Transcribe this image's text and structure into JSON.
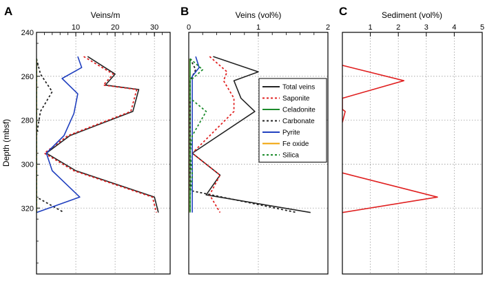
{
  "chart_data": [
    {
      "type": "line",
      "panel": "A",
      "title": "Veins/m",
      "xlabel": "Veins/m",
      "ylabel": "Depth (mbsf)",
      "xlim": [
        0,
        34
      ],
      "ylim": [
        240,
        350
      ],
      "y_inverted": true,
      "x_ticks": [
        10,
        20,
        30
      ],
      "y_ticks": [
        240,
        260,
        280,
        300,
        320
      ],
      "grid": true,
      "series": [
        {
          "name": "Total veins",
          "color": "#222222",
          "dash": "solid",
          "points": [
            [
              13,
              251
            ],
            [
              20,
              259
            ],
            [
              17.5,
              264
            ],
            [
              26,
              266
            ],
            [
              24.5,
              276
            ],
            [
              8.5,
              287
            ],
            [
              2.5,
              295
            ],
            [
              10,
              303
            ],
            [
              30,
              315
            ],
            [
              31,
              322
            ]
          ]
        },
        {
          "name": "Saponite",
          "color": "#e02020",
          "dash": "dotted",
          "points": [
            [
              12,
              251
            ],
            [
              19.5,
              259
            ],
            [
              17,
              264
            ],
            [
              25.5,
              266
            ],
            [
              24,
              276
            ],
            [
              8,
              287
            ],
            [
              2,
              295
            ],
            [
              9.5,
              303
            ],
            [
              29.5,
              315
            ],
            [
              30.5,
              322
            ]
          ]
        },
        {
          "name": "Celadonite",
          "color": "#1a8a2a",
          "dash": "solid",
          "points": [
            [
              0,
              252
            ],
            [
              0,
              322
            ]
          ]
        },
        {
          "name": "Carbonate",
          "color": "#222222",
          "dash": "dotted",
          "points": [
            [
              0,
              252
            ],
            [
              1,
              259
            ],
            [
              4,
              267
            ],
            [
              1,
              276
            ],
            [
              0,
              287
            ],
            [
              0,
              303
            ],
            [
              0,
              315
            ],
            [
              7,
              322
            ]
          ]
        },
        {
          "name": "Pyrite",
          "color": "#1f3fbf",
          "dash": "solid",
          "points": [
            [
              10.5,
              251
            ],
            [
              11.5,
              256
            ],
            [
              6.5,
              261
            ],
            [
              10.5,
              268
            ],
            [
              9.5,
              277
            ],
            [
              7,
              287
            ],
            [
              2.5,
              295
            ],
            [
              4,
              303
            ],
            [
              11,
              315
            ],
            [
              0,
              322
            ]
          ]
        },
        {
          "name": "Fe oxide",
          "color": "#f0a000",
          "dash": "solid",
          "points": [
            [
              0,
              252
            ],
            [
              0,
              322
            ]
          ]
        },
        {
          "name": "Silica",
          "color": "#1a8a2a",
          "dash": "dotted",
          "points": [
            [
              0,
              252
            ],
            [
              0,
              322
            ]
          ]
        }
      ]
    },
    {
      "type": "line",
      "panel": "B",
      "title": "Veins (vol%)",
      "xlabel": "Veins (vol%)",
      "ylabel": "",
      "xlim": [
        0,
        2
      ],
      "ylim": [
        240,
        350
      ],
      "y_inverted": true,
      "x_ticks": [
        0,
        1,
        2
      ],
      "grid": true,
      "legend": {
        "position": "right",
        "entries": [
          {
            "name": "Total veins",
            "color": "#222222",
            "dash": "solid"
          },
          {
            "name": "Saponite",
            "color": "#e02020",
            "dash": "dotted"
          },
          {
            "name": "Celadonite",
            "color": "#1a8a2a",
            "dash": "solid"
          },
          {
            "name": "Carbonate",
            "color": "#222222",
            "dash": "dotted"
          },
          {
            "name": "Pyrite",
            "color": "#1f3fbf",
            "dash": "solid"
          },
          {
            "name": "Fe oxide",
            "color": "#f0a000",
            "dash": "solid"
          },
          {
            "name": "Silica",
            "color": "#1a8a2a",
            "dash": "dotted"
          }
        ]
      },
      "series": [
        {
          "name": "Total veins",
          "color": "#222222",
          "dash": "solid",
          "points": [
            [
              0.35,
              251
            ],
            [
              1.0,
              258
            ],
            [
              0.65,
              262
            ],
            [
              0.75,
              270
            ],
            [
              0.95,
              276
            ],
            [
              0.05,
              295
            ],
            [
              0.45,
              305
            ],
            [
              0.25,
              314
            ],
            [
              1.75,
              322
            ]
          ]
        },
        {
          "name": "Saponite",
          "color": "#e02020",
          "dash": "dotted",
          "points": [
            [
              0.3,
              251
            ],
            [
              0.55,
              258
            ],
            [
              0.5,
              262
            ],
            [
              0.65,
              270
            ],
            [
              0.65,
              276
            ],
            [
              0.05,
              295
            ],
            [
              0.45,
              305
            ],
            [
              0.3,
              314
            ],
            [
              0.45,
              322
            ]
          ]
        },
        {
          "name": "Celadonite",
          "color": "#1a8a2a",
          "dash": "solid",
          "points": [
            [
              0.02,
              252
            ],
            [
              0.02,
              322
            ]
          ]
        },
        {
          "name": "Carbonate",
          "color": "#222222",
          "dash": "dotted",
          "points": [
            [
              0.02,
              252
            ],
            [
              0.1,
              257
            ],
            [
              0.02,
              262
            ],
            [
              0.02,
              312
            ],
            [
              1.55,
              322
            ]
          ]
        },
        {
          "name": "Pyrite",
          "color": "#1f3fbf",
          "dash": "solid",
          "points": [
            [
              0.1,
              251
            ],
            [
              0.15,
              256
            ],
            [
              0.05,
              260
            ],
            [
              0.05,
              322
            ]
          ]
        },
        {
          "name": "Fe oxide",
          "color": "#f0a000",
          "dash": "solid",
          "points": [
            [
              0,
              252
            ],
            [
              0,
              322
            ]
          ]
        },
        {
          "name": "Silica",
          "color": "#1a8a2a",
          "dash": "dotted",
          "points": [
            [
              0.02,
              252
            ],
            [
              0.2,
              257
            ],
            [
              0.02,
              262
            ],
            [
              0.02,
              270
            ],
            [
              0.25,
              276
            ],
            [
              0.05,
              287
            ],
            [
              0.02,
              295
            ],
            [
              0.05,
              305
            ],
            [
              0.02,
              314
            ],
            [
              0.02,
              322
            ]
          ]
        }
      ]
    },
    {
      "type": "line",
      "panel": "C",
      "title": "Sediment (vol%)",
      "xlabel": "Sediment (vol%)",
      "ylabel": "",
      "xlim": [
        0,
        5
      ],
      "ylim": [
        240,
        350
      ],
      "y_inverted": true,
      "x_ticks": [
        1,
        2,
        3,
        4,
        5
      ],
      "grid": true,
      "series": [
        {
          "name": "Sediment",
          "color": "#e02020",
          "dash": "solid",
          "segments": [
            [
              [
                0,
                255
              ],
              [
                2.2,
                262
              ],
              [
                0,
                270
              ],
              [
                0,
                275
              ],
              [
                0.1,
                276
              ],
              [
                0,
                281
              ]
            ],
            [
              [
                0,
                304
              ],
              [
                3.4,
                315
              ],
              [
                0,
                322
              ]
            ]
          ]
        }
      ]
    }
  ]
}
